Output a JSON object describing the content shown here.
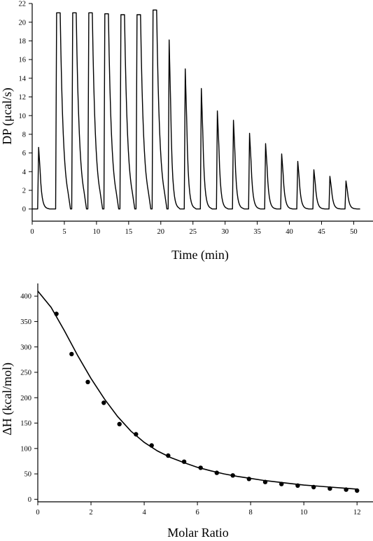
{
  "chart_data": [
    {
      "type": "line",
      "xlabel": "Time (min)",
      "ylabel": "DP (μcal/s)",
      "xlim": [
        0,
        53
      ],
      "ylim": [
        -1.3,
        22
      ],
      "xticks": [
        0,
        5,
        10,
        15,
        20,
        25,
        30,
        35,
        40,
        45,
        50
      ],
      "yticks": [
        0,
        2,
        4,
        6,
        8,
        10,
        12,
        14,
        16,
        18,
        20,
        22
      ],
      "baseline": 0,
      "trace_end_min": 51,
      "series": [
        {
          "injection_times_min": [
            1.0,
            3.8,
            6.3,
            8.8,
            11.3,
            13.8,
            16.3,
            18.8,
            21.3,
            23.8,
            26.3,
            28.8,
            31.3,
            33.8,
            36.3,
            38.8,
            41.3,
            43.8,
            46.3,
            48.8
          ],
          "peak_heights": [
            6.6,
            21.0,
            21.0,
            21.0,
            20.9,
            20.8,
            20.8,
            21.3,
            18.1,
            15.0,
            12.9,
            10.5,
            9.5,
            8.1,
            7.0,
            5.9,
            5.1,
            4.2,
            3.5,
            3.0
          ]
        }
      ]
    },
    {
      "type": "scatter",
      "xlabel": "Molar Ratio",
      "ylabel": "ΔH (kcal/mol)",
      "xlim": [
        0,
        12.6
      ],
      "ylim": [
        -5,
        425
      ],
      "xticks": [
        0,
        2,
        4,
        6,
        8,
        10,
        12
      ],
      "yticks": [
        0,
        50,
        100,
        150,
        200,
        250,
        300,
        350,
        400
      ],
      "series": [
        {
          "x": [
            0.7,
            1.27,
            1.88,
            2.48,
            3.07,
            3.69,
            4.28,
            4.9,
            5.5,
            6.12,
            6.73,
            7.33,
            7.94,
            8.55,
            9.16,
            9.77,
            10.37,
            10.98,
            11.59,
            12.0
          ],
          "y": [
            365,
            286,
            231,
            190,
            148,
            128,
            106,
            86,
            74,
            62,
            52,
            47,
            40,
            34,
            30,
            27,
            24,
            21,
            19,
            17
          ]
        },
        {
          "fit_x": [
            0,
            0.5,
            1.0,
            1.5,
            2.0,
            2.5,
            3.0,
            3.5,
            4.0,
            4.5,
            5.0,
            5.5,
            6.0,
            6.5,
            7.0,
            7.5,
            8.0,
            8.5,
            9.0,
            9.5,
            10.0,
            10.5,
            11.0,
            11.5,
            12.0
          ],
          "fit_y": [
            410,
            378,
            332,
            283,
            238,
            198,
            163,
            134,
            112,
            95,
            82,
            72,
            63,
            56,
            50,
            45,
            41,
            37,
            34,
            31,
            28,
            26,
            24,
            22,
            20
          ]
        }
      ]
    }
  ]
}
